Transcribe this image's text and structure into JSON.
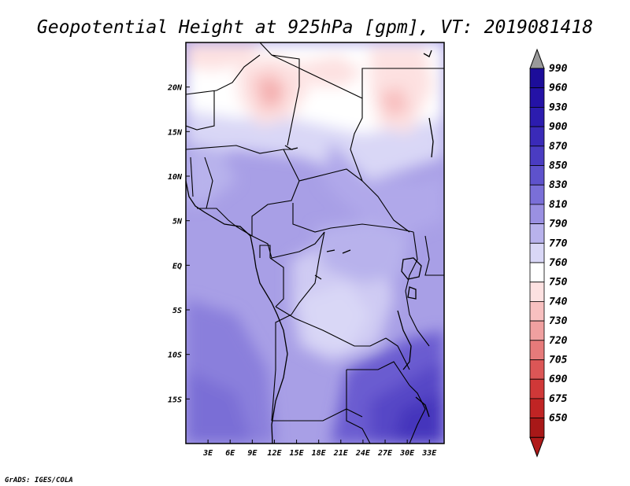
{
  "title": "Geopotential Height at 925hPa [gpm], VT: 2019081418",
  "credit": "GrADS: IGES/COLA",
  "map": {
    "lon_range": [
      0,
      35
    ],
    "lat_range": [
      -20,
      25
    ],
    "lon_ticks": [
      {
        "value": 3,
        "label": "3E"
      },
      {
        "value": 6,
        "label": "6E"
      },
      {
        "value": 9,
        "label": "9E"
      },
      {
        "value": 12,
        "label": "12E"
      },
      {
        "value": 15,
        "label": "15E"
      },
      {
        "value": 18,
        "label": "18E"
      },
      {
        "value": 21,
        "label": "21E"
      },
      {
        "value": 24,
        "label": "24E"
      },
      {
        "value": 27,
        "label": "27E"
      },
      {
        "value": 30,
        "label": "30E"
      },
      {
        "value": 33,
        "label": "33E"
      }
    ],
    "lat_ticks": [
      {
        "value": 20,
        "label": "20N"
      },
      {
        "value": 15,
        "label": "15N"
      },
      {
        "value": 10,
        "label": "10N"
      },
      {
        "value": 5,
        "label": "5N"
      },
      {
        "value": 0,
        "label": "EQ"
      },
      {
        "value": -5,
        "label": "5S"
      },
      {
        "value": -10,
        "label": "10S"
      },
      {
        "value": -15,
        "label": "15S"
      }
    ]
  },
  "colorbar": {
    "levels": [
      {
        "label": "990",
        "color": "#1c0d9a"
      },
      {
        "label": "960",
        "color": "#2412a6"
      },
      {
        "label": "930",
        "color": "#2c1caf"
      },
      {
        "label": "900",
        "color": "#3a2ab8"
      },
      {
        "label": "870",
        "color": "#4a3cc2"
      },
      {
        "label": "850",
        "color": "#5e52cc"
      },
      {
        "label": "830",
        "color": "#7a6fd8"
      },
      {
        "label": "810",
        "color": "#9a90e2"
      },
      {
        "label": "790",
        "color": "#b8b2ec"
      },
      {
        "label": "770",
        "color": "#d9d7f6"
      },
      {
        "label": "760",
        "color": "#ffffff"
      },
      {
        "label": "750",
        "color": "#fde1e1"
      },
      {
        "label": "740",
        "color": "#f8c0c0"
      },
      {
        "label": "730",
        "color": "#f0a0a0"
      },
      {
        "label": "720",
        "color": "#e67a7a"
      },
      {
        "label": "705",
        "color": "#dc5656"
      },
      {
        "label": "690",
        "color": "#d03838"
      },
      {
        "label": "675",
        "color": "#c02424"
      },
      {
        "label": "650",
        "color": "#a81818"
      }
    ],
    "top_arrow_color": "#9a9a9a",
    "bottom_arrow_color": "#b01a1a"
  }
}
